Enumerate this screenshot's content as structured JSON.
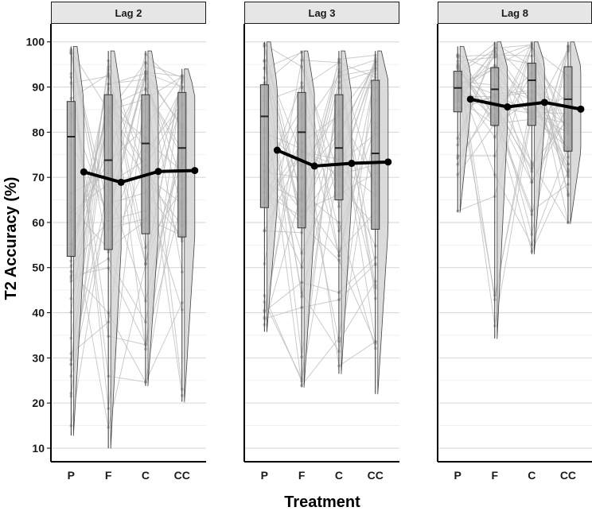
{
  "chart_data": {
    "type": "boxplot",
    "subtype": "raincloud with paired individual lines and mean line",
    "xlabel": "Treatment",
    "ylabel": "T2 Accuracy (%)",
    "categories": [
      "P",
      "F",
      "C",
      "CC"
    ],
    "yticks": [
      10,
      20,
      30,
      40,
      50,
      60,
      70,
      80,
      90,
      100
    ],
    "ylim": [
      7,
      104
    ],
    "panels": [
      {
        "label": "Lag 2",
        "means": [
          71.2,
          68.9,
          71.3,
          71.5
        ],
        "boxes": [
          {
            "q1": 52.5,
            "median": 79.0,
            "q3": 86.8,
            "min": 12.8,
            "max": 99.0
          },
          {
            "q1": 54.0,
            "median": 73.8,
            "q3": 88.3,
            "min": 10.0,
            "max": 98.0
          },
          {
            "q1": 57.5,
            "median": 77.5,
            "q3": 88.3,
            "min": 23.8,
            "max": 98.0
          },
          {
            "q1": 56.8,
            "median": 76.5,
            "q3": 88.8,
            "min": 20.3,
            "max": 94.0
          }
        ]
      },
      {
        "label": "Lag 3",
        "means": [
          76.0,
          72.5,
          73.1,
          73.4
        ],
        "boxes": [
          {
            "q1": 63.3,
            "median": 83.5,
            "q3": 90.5,
            "min": 35.8,
            "max": 100.0
          },
          {
            "q1": 58.8,
            "median": 80.0,
            "q3": 88.8,
            "min": 23.5,
            "max": 98.0
          },
          {
            "q1": 65.0,
            "median": 76.5,
            "q3": 88.3,
            "min": 26.5,
            "max": 98.0
          },
          {
            "q1": 58.5,
            "median": 75.3,
            "q3": 91.5,
            "min": 22.0,
            "max": 98.0
          }
        ]
      },
      {
        "label": "Lag 8",
        "means": [
          87.3,
          85.6,
          86.6,
          85.1
        ],
        "boxes": [
          {
            "q1": 84.5,
            "median": 89.8,
            "q3": 93.5,
            "min": 62.3,
            "max": 99.0
          },
          {
            "q1": 81.5,
            "median": 89.5,
            "q3": 94.3,
            "min": 34.3,
            "max": 100.0
          },
          {
            "q1": 81.5,
            "median": 91.5,
            "q3": 95.3,
            "min": 53.0,
            "max": 100.0
          },
          {
            "q1": 75.8,
            "median": 87.3,
            "q3": 94.5,
            "min": 59.8,
            "max": 100.0
          }
        ]
      }
    ]
  }
}
